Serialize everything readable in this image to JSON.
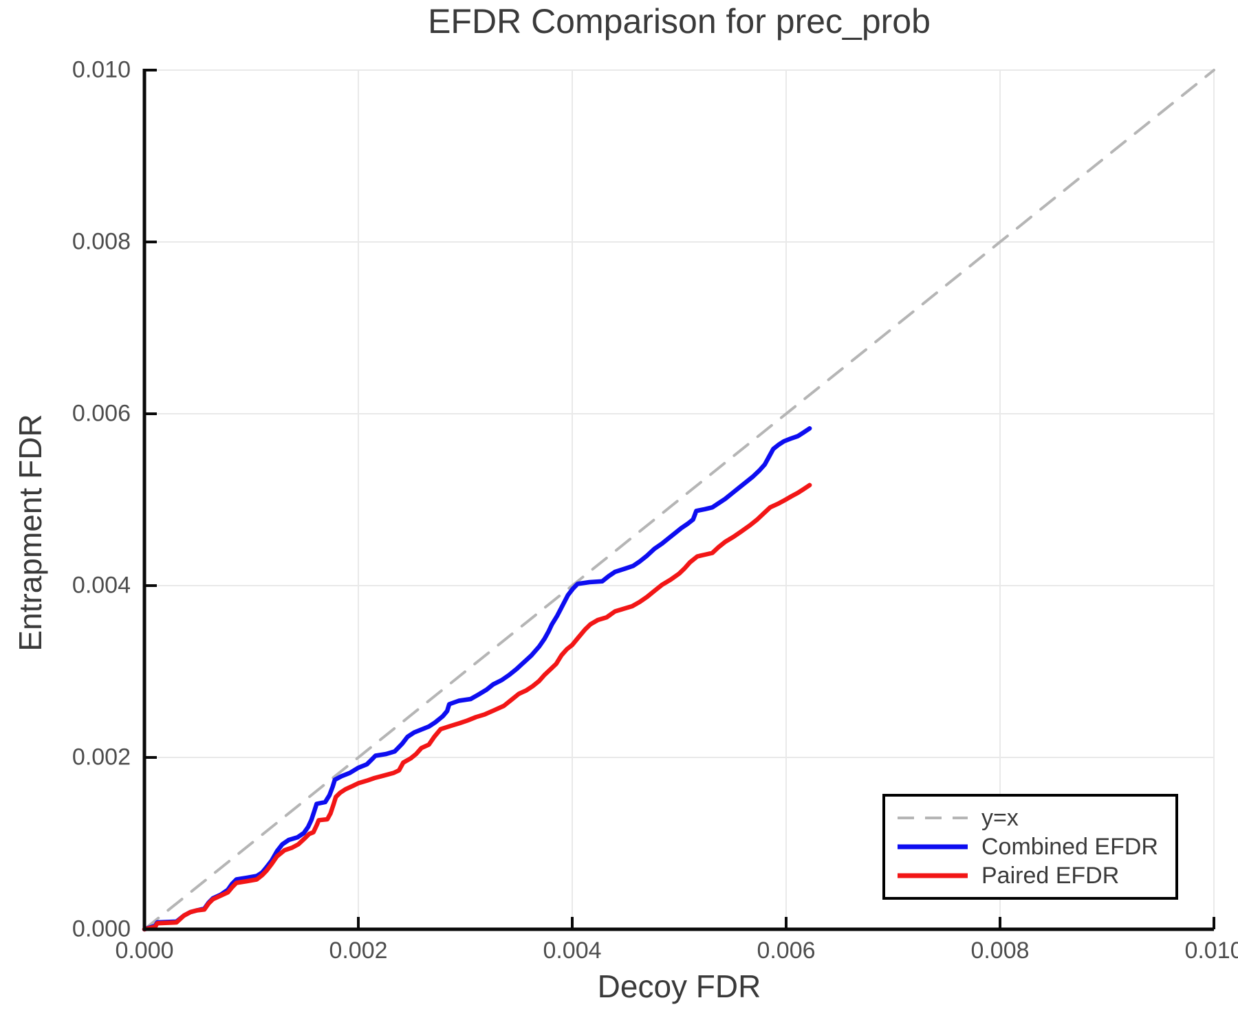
{
  "title": "EFDR Comparison for prec_prob",
  "colors": {
    "diagonal": "#b5b5b5",
    "combined": "#0d0df0",
    "paired": "#f21616",
    "spine": "#0a0a0a",
    "grid": "#e9e9e9",
    "title_text": "#3a3a3a",
    "tick_text": "#4d4d4d"
  },
  "chart_data": {
    "type": "line",
    "title": "EFDR Comparison for prec_prob",
    "xlabel": "Decoy FDR",
    "ylabel": "Entrapment FDR",
    "xlim": [
      0,
      0.01
    ],
    "ylim": [
      0,
      0.01
    ],
    "grid": true,
    "legend_position": "lower right",
    "x_ticks": {
      "values": [
        0,
        0.002,
        0.004,
        0.006,
        0.008,
        0.01
      ],
      "labels": [
        "0.000",
        "0.002",
        "0.004",
        "0.006",
        "0.008",
        "0.010"
      ]
    },
    "y_ticks": {
      "values": [
        0,
        0.002,
        0.004,
        0.006,
        0.008,
        0.01
      ],
      "labels": [
        "0.000",
        "0.002",
        "0.004",
        "0.006",
        "0.008",
        "0.010"
      ]
    },
    "series": [
      {
        "name": "y=x",
        "color": "#b5b5b5",
        "style": "dashed",
        "width": 4,
        "points": [
          [
            0,
            0
          ],
          [
            0.01,
            0.01
          ]
        ]
      },
      {
        "name": "Combined EFDR",
        "color": "#0d0df0",
        "style": "solid",
        "width": 6.5,
        "points": [
          [
            0,
            0
          ],
          [
            0.0001,
            4e-05
          ],
          [
            0.00012,
            8e-05
          ],
          [
            0.0003,
            9e-05
          ],
          [
            0.00037,
            0.00016
          ],
          [
            0.00043,
            0.0002
          ],
          [
            0.00049,
            0.00022
          ],
          [
            0.00056,
            0.00024
          ],
          [
            0.0006,
            0.00031
          ],
          [
            0.00064,
            0.00036
          ],
          [
            0.00071,
            0.0004
          ],
          [
            0.00078,
            0.00046
          ],
          [
            0.00082,
            0.00053
          ],
          [
            0.00086,
            0.00058
          ],
          [
            0.00096,
            0.0006
          ],
          [
            0.00105,
            0.00062
          ],
          [
            0.0011,
            0.00066
          ],
          [
            0.00114,
            0.00072
          ],
          [
            0.00119,
            0.0008
          ],
          [
            0.00124,
            0.00091
          ],
          [
            0.00129,
            0.00099
          ],
          [
            0.00135,
            0.00104
          ],
          [
            0.00143,
            0.00107
          ],
          [
            0.00149,
            0.00112
          ],
          [
            0.00153,
            0.00119
          ],
          [
            0.00156,
            0.00127
          ],
          [
            0.00159,
            0.00138
          ],
          [
            0.00161,
            0.00146
          ],
          [
            0.00169,
            0.00148
          ],
          [
            0.00173,
            0.00156
          ],
          [
            0.00176,
            0.00166
          ],
          [
            0.00178,
            0.00174
          ],
          [
            0.00184,
            0.00178
          ],
          [
            0.00192,
            0.00182
          ],
          [
            0.002,
            0.00188
          ],
          [
            0.00208,
            0.00192
          ],
          [
            0.00212,
            0.00197
          ],
          [
            0.00216,
            0.00202
          ],
          [
            0.00226,
            0.00204
          ],
          [
            0.00234,
            0.00207
          ],
          [
            0.00241,
            0.00216
          ],
          [
            0.00246,
            0.00224
          ],
          [
            0.00252,
            0.00229
          ],
          [
            0.00258,
            0.00232
          ],
          [
            0.00266,
            0.00236
          ],
          [
            0.00272,
            0.00241
          ],
          [
            0.00279,
            0.00248
          ],
          [
            0.00283,
            0.00254
          ],
          [
            0.00285,
            0.00262
          ],
          [
            0.00294,
            0.00266
          ],
          [
            0.00305,
            0.00268
          ],
          [
            0.00312,
            0.00273
          ],
          [
            0.0032,
            0.00279
          ],
          [
            0.00326,
            0.00285
          ],
          [
            0.00334,
            0.0029
          ],
          [
            0.00341,
            0.00296
          ],
          [
            0.00348,
            0.00303
          ],
          [
            0.00355,
            0.00311
          ],
          [
            0.00362,
            0.00319
          ],
          [
            0.00369,
            0.00329
          ],
          [
            0.00374,
            0.00338
          ],
          [
            0.00378,
            0.00347
          ],
          [
            0.00381,
            0.00355
          ],
          [
            0.00386,
            0.00365
          ],
          [
            0.00391,
            0.00377
          ],
          [
            0.00396,
            0.00389
          ],
          [
            0.00401,
            0.00397
          ],
          [
            0.00405,
            0.00402
          ],
          [
            0.00416,
            0.00404
          ],
          [
            0.00428,
            0.00405
          ],
          [
            0.00434,
            0.00411
          ],
          [
            0.0044,
            0.00416
          ],
          [
            0.0045,
            0.0042
          ],
          [
            0.00457,
            0.00423
          ],
          [
            0.00463,
            0.00428
          ],
          [
            0.0047,
            0.00435
          ],
          [
            0.00477,
            0.00443
          ],
          [
            0.00484,
            0.00449
          ],
          [
            0.0049,
            0.00455
          ],
          [
            0.00496,
            0.00461
          ],
          [
            0.00502,
            0.00467
          ],
          [
            0.00508,
            0.00472
          ],
          [
            0.00513,
            0.00477
          ],
          [
            0.00516,
            0.00487
          ],
          [
            0.00524,
            0.00489
          ],
          [
            0.00531,
            0.00491
          ],
          [
            0.00537,
            0.00496
          ],
          [
            0.00543,
            0.00501
          ],
          [
            0.0055,
            0.00508
          ],
          [
            0.00557,
            0.00515
          ],
          [
            0.00563,
            0.00521
          ],
          [
            0.00569,
            0.00527
          ],
          [
            0.00575,
            0.00534
          ],
          [
            0.0058,
            0.00541
          ],
          [
            0.00584,
            0.0055
          ],
          [
            0.00588,
            0.00559
          ],
          [
            0.00593,
            0.00564
          ],
          [
            0.00598,
            0.00568
          ],
          [
            0.00604,
            0.00571
          ],
          [
            0.00611,
            0.00574
          ],
          [
            0.00616,
            0.00578
          ],
          [
            0.00622,
            0.00583
          ]
        ]
      },
      {
        "name": "Paired EFDR",
        "color": "#f21616",
        "style": "solid",
        "width": 6.5,
        "points": [
          [
            0,
            0
          ],
          [
            0.0001,
            3e-05
          ],
          [
            0.00012,
            7e-05
          ],
          [
            0.0003,
            8e-05
          ],
          [
            0.00037,
            0.00016
          ],
          [
            0.00043,
            0.0002
          ],
          [
            0.00049,
            0.00022
          ],
          [
            0.00056,
            0.00023
          ],
          [
            0.0006,
            0.0003
          ],
          [
            0.00064,
            0.00035
          ],
          [
            0.00071,
            0.00039
          ],
          [
            0.00078,
            0.00043
          ],
          [
            0.00082,
            0.00049
          ],
          [
            0.00086,
            0.00054
          ],
          [
            0.00096,
            0.00056
          ],
          [
            0.00105,
            0.00058
          ],
          [
            0.0011,
            0.00063
          ],
          [
            0.00114,
            0.00068
          ],
          [
            0.00119,
            0.00076
          ],
          [
            0.00124,
            0.00085
          ],
          [
            0.00131,
            0.00092
          ],
          [
            0.00138,
            0.00095
          ],
          [
            0.00144,
            0.00099
          ],
          [
            0.0015,
            0.00106
          ],
          [
            0.00154,
            0.00111
          ],
          [
            0.00158,
            0.00113
          ],
          [
            0.00161,
            0.00121
          ],
          [
            0.00163,
            0.00127
          ],
          [
            0.00171,
            0.00128
          ],
          [
            0.00174,
            0.00135
          ],
          [
            0.00177,
            0.00146
          ],
          [
            0.00179,
            0.00154
          ],
          [
            0.00183,
            0.00159
          ],
          [
            0.00188,
            0.00163
          ],
          [
            0.00195,
            0.00167
          ],
          [
            0.002,
            0.0017
          ],
          [
            0.00208,
            0.00173
          ],
          [
            0.00215,
            0.00176
          ],
          [
            0.00224,
            0.00179
          ],
          [
            0.00233,
            0.00182
          ],
          [
            0.00238,
            0.00185
          ],
          [
            0.00242,
            0.00194
          ],
          [
            0.00249,
            0.00199
          ],
          [
            0.00254,
            0.00204
          ],
          [
            0.00259,
            0.00211
          ],
          [
            0.00266,
            0.00215
          ],
          [
            0.00271,
            0.00224
          ],
          [
            0.00277,
            0.00233
          ],
          [
            0.00287,
            0.00237
          ],
          [
            0.00295,
            0.0024
          ],
          [
            0.00302,
            0.00243
          ],
          [
            0.0031,
            0.00247
          ],
          [
            0.00318,
            0.0025
          ],
          [
            0.00327,
            0.00255
          ],
          [
            0.00336,
            0.0026
          ],
          [
            0.00343,
            0.00267
          ],
          [
            0.0035,
            0.00274
          ],
          [
            0.00357,
            0.00278
          ],
          [
            0.00363,
            0.00283
          ],
          [
            0.00369,
            0.00289
          ],
          [
            0.00374,
            0.00296
          ],
          [
            0.0038,
            0.00303
          ],
          [
            0.00385,
            0.00309
          ],
          [
            0.0039,
            0.00319
          ],
          [
            0.00395,
            0.00326
          ],
          [
            0.004,
            0.00331
          ],
          [
            0.00406,
            0.0034
          ],
          [
            0.00412,
            0.00349
          ],
          [
            0.00417,
            0.00355
          ],
          [
            0.00424,
            0.0036
          ],
          [
            0.00432,
            0.00363
          ],
          [
            0.0044,
            0.0037
          ],
          [
            0.00448,
            0.00373
          ],
          [
            0.00456,
            0.00376
          ],
          [
            0.00463,
            0.00381
          ],
          [
            0.0047,
            0.00387
          ],
          [
            0.00477,
            0.00394
          ],
          [
            0.00484,
            0.00401
          ],
          [
            0.00492,
            0.00407
          ],
          [
            0.005,
            0.00414
          ],
          [
            0.00505,
            0.0042
          ],
          [
            0.0051,
            0.00427
          ],
          [
            0.00517,
            0.00434
          ],
          [
            0.00524,
            0.00436
          ],
          [
            0.00531,
            0.00438
          ],
          [
            0.00537,
            0.00445
          ],
          [
            0.00543,
            0.00451
          ],
          [
            0.00551,
            0.00457
          ],
          [
            0.00558,
            0.00463
          ],
          [
            0.00566,
            0.0047
          ],
          [
            0.00573,
            0.00477
          ],
          [
            0.00579,
            0.00484
          ],
          [
            0.00585,
            0.00491
          ],
          [
            0.00592,
            0.00495
          ],
          [
            0.00598,
            0.00499
          ],
          [
            0.00605,
            0.00504
          ],
          [
            0.00611,
            0.00508
          ],
          [
            0.00616,
            0.00512
          ],
          [
            0.00622,
            0.00517
          ]
        ]
      }
    ]
  }
}
